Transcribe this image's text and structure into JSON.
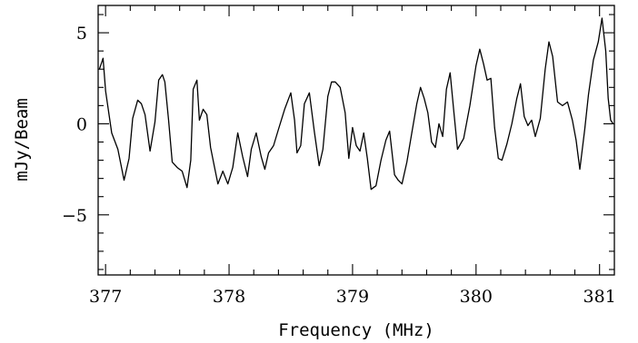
{
  "chart_data": {
    "type": "line",
    "title": "",
    "xlabel": "Frequency (MHz)",
    "ylabel": "mJy/Beam",
    "xlim": [
      376.94,
      381.12
    ],
    "ylim": [
      -8.3,
      6.5
    ],
    "grid": false,
    "x_ticks": [
      377,
      378,
      379,
      380,
      381
    ],
    "x_tick_labels": [
      "377",
      "378",
      "379",
      "380",
      "381"
    ],
    "y_ticks": [
      -5,
      0,
      5
    ],
    "y_tick_labels": [
      "−5",
      "0",
      "5"
    ],
    "series": [
      {
        "x": [
          376.95,
          376.98,
          377.0,
          377.05,
          377.1,
          377.15,
          377.19,
          377.22,
          377.26,
          377.29,
          377.32,
          377.36,
          377.4,
          377.43,
          377.46,
          377.48,
          377.51,
          377.54,
          377.58,
          377.62,
          377.66,
          377.69,
          377.71,
          377.74,
          377.76,
          377.79,
          377.82,
          377.85,
          377.88,
          377.91,
          377.95,
          377.99,
          378.03,
          378.07,
          378.11,
          378.15,
          378.18,
          378.22,
          378.26,
          378.29,
          378.32,
          378.36,
          378.4,
          378.45,
          378.5,
          378.53,
          378.55,
          378.58,
          378.61,
          378.65,
          378.69,
          378.73,
          378.76,
          378.8,
          378.83,
          378.86,
          378.9,
          378.94,
          378.97,
          379.0,
          379.03,
          379.06,
          379.09,
          379.12,
          379.15,
          379.19,
          379.23,
          379.27,
          379.3,
          379.34,
          379.37,
          379.4,
          379.44,
          379.48,
          379.52,
          379.55,
          379.58,
          379.61,
          379.64,
          379.67,
          379.7,
          379.73,
          379.76,
          379.79,
          379.82,
          379.85,
          379.9,
          379.95,
          380.0,
          380.03,
          380.06,
          380.09,
          380.12,
          380.15,
          380.18,
          380.21,
          380.25,
          380.29,
          380.33,
          380.36,
          380.39,
          380.42,
          380.45,
          380.48,
          380.52,
          380.56,
          380.59,
          380.62,
          380.66,
          380.7,
          380.74,
          380.78,
          380.81,
          380.84,
          380.88,
          380.91,
          380.95,
          380.99,
          381.02,
          381.05,
          381.07,
          381.09,
          381.11
        ],
        "y": [
          3.0,
          3.6,
          1.8,
          -0.5,
          -1.4,
          -3.1,
          -1.9,
          0.3,
          1.3,
          1.1,
          0.5,
          -1.5,
          0.1,
          2.4,
          2.7,
          2.3,
          0.2,
          -2.1,
          -2.4,
          -2.6,
          -3.5,
          -2.0,
          1.9,
          2.4,
          0.2,
          0.8,
          0.5,
          -1.3,
          -2.3,
          -3.3,
          -2.6,
          -3.3,
          -2.4,
          -0.5,
          -1.8,
          -2.9,
          -1.4,
          -0.5,
          -1.8,
          -2.5,
          -1.6,
          -1.2,
          -0.3,
          0.8,
          1.7,
          0.2,
          -1.6,
          -1.2,
          1.1,
          1.7,
          -0.4,
          -2.3,
          -1.4,
          1.5,
          2.3,
          2.3,
          2.0,
          0.6,
          -1.9,
          -0.2,
          -1.2,
          -1.5,
          -0.5,
          -1.9,
          -3.6,
          -3.4,
          -2.0,
          -0.9,
          -0.4,
          -2.8,
          -3.1,
          -3.3,
          -2.1,
          -0.5,
          1.1,
          2.0,
          1.4,
          0.6,
          -1.0,
          -1.3,
          0.0,
          -0.7,
          1.9,
          2.8,
          0.7,
          -1.4,
          -0.8,
          1.0,
          3.2,
          4.1,
          3.3,
          2.4,
          2.5,
          -0.2,
          -1.9,
          -2.0,
          -1.1,
          0.0,
          1.4,
          2.2,
          0.4,
          -0.1,
          0.2,
          -0.7,
          0.3,
          3.0,
          4.5,
          3.7,
          1.2,
          1.0,
          1.2,
          0.2,
          -0.9,
          -2.5,
          -0.3,
          1.6,
          3.5,
          4.5,
          5.8,
          4.0,
          1.4,
          0.2,
          0.0
        ]
      }
    ]
  }
}
